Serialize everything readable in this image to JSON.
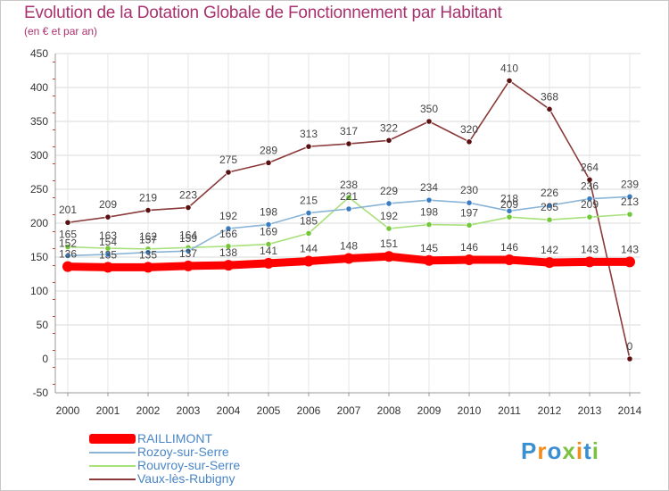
{
  "chart_data": {
    "type": "line",
    "title": "Evolution de la Dotation Globale de Fonctionnement par Habitant",
    "subtitle": "(en € et par an)",
    "xlabel": "",
    "ylabel": "",
    "ylim": [
      -50,
      450
    ],
    "yticks": [
      -50,
      0,
      50,
      100,
      150,
      200,
      250,
      300,
      350,
      400,
      450
    ],
    "categories": [
      "2000",
      "2001",
      "2002",
      "2003",
      "2004",
      "2005",
      "2006",
      "2007",
      "2008",
      "2009",
      "2010",
      "2011",
      "2012",
      "2013",
      "2014"
    ],
    "grid": true,
    "legend_position": "bottom-left",
    "series": [
      {
        "name": "RAILLIMONT",
        "color": "#ff0000",
        "marker": "#ff0000",
        "values": [
          136,
          135,
          135,
          137,
          138,
          141,
          144,
          148,
          151,
          145,
          146,
          146,
          142,
          143,
          143
        ],
        "labels": [
          "136",
          "135",
          "135",
          "137",
          "138",
          "141",
          "144",
          "148",
          "151",
          "145",
          "146",
          "146",
          "142",
          "143",
          "143"
        ]
      },
      {
        "name": "Rozoy-sur-Serre",
        "color": "#8ab4d6",
        "marker": "#3a7cc0",
        "values": [
          152,
          154,
          157,
          159,
          192,
          198,
          215,
          221,
          229,
          234,
          230,
          218,
          226,
          236,
          239
        ],
        "labels": [
          "152",
          "154",
          "157",
          "159",
          "192",
          "198",
          "215",
          "221",
          "229",
          "234",
          "230",
          "218",
          "226",
          "236",
          "239"
        ]
      },
      {
        "name": "Rouvroy-sur-Serre",
        "color": "#a8e07a",
        "marker": "#72c83a",
        "values": [
          165,
          163,
          162,
          164,
          166,
          169,
          185,
          238,
          192,
          198,
          197,
          209,
          205,
          209,
          213
        ],
        "labels": [
          "165",
          "163",
          "162",
          "164",
          "166",
          "169",
          "185",
          "238",
          "192",
          "198",
          "197",
          "209",
          "205",
          "209",
          "213"
        ]
      },
      {
        "name": "Vaux-lès-Rubigny",
        "color": "#8a3a3a",
        "marker": "#5a1010",
        "values": [
          201,
          209,
          219,
          223,
          275,
          289,
          313,
          317,
          322,
          350,
          320,
          410,
          368,
          264,
          0
        ],
        "labels": [
          "201",
          "209",
          "219",
          "223",
          "275",
          "289",
          "313",
          "317",
          "322",
          "350",
          "320",
          "410",
          "368",
          "264",
          "0"
        ]
      }
    ]
  },
  "logo": {
    "letters": [
      "P",
      "r",
      "o",
      "x",
      "i",
      "t",
      "i"
    ],
    "colors": [
      "#3a8fd0",
      "#f28c1e",
      "#3a8fd0",
      "#7cc242",
      "#f28c1e",
      "#3a8fd0",
      "#7cc242"
    ]
  }
}
